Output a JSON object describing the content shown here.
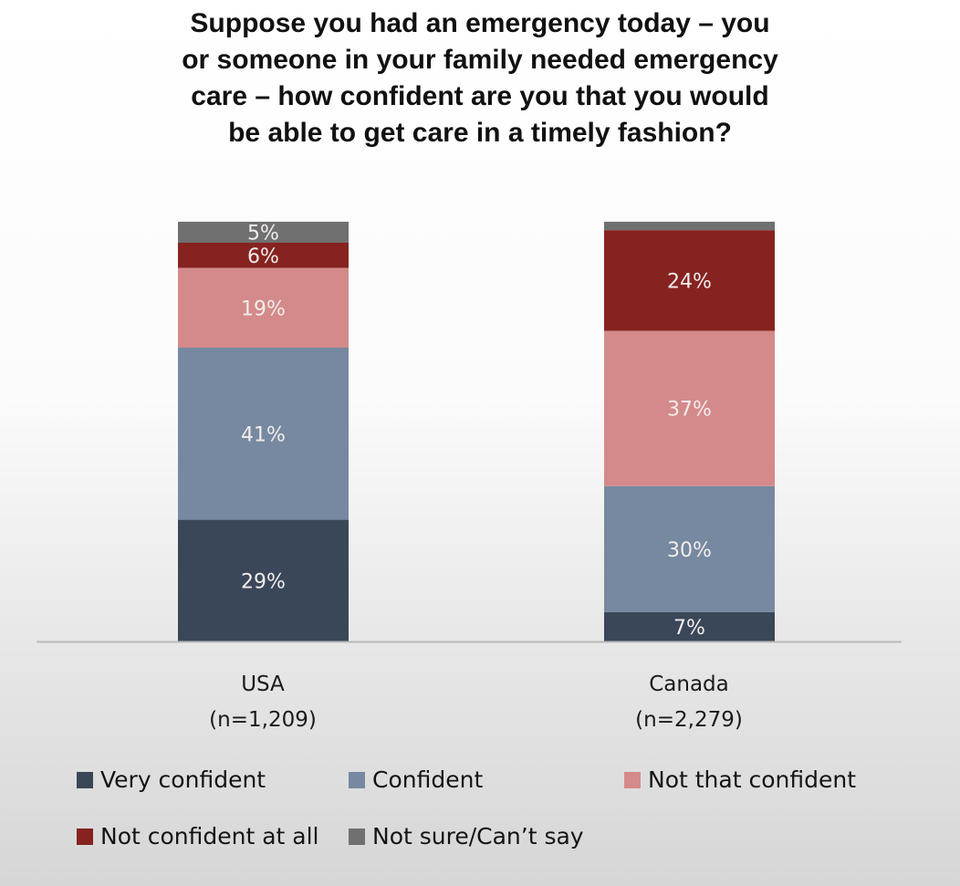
{
  "title_lines": [
    "Suppose you had an emergency today – you",
    "or someone in your family needed emergency",
    "care – how confident are you that you would",
    "be able to get care in a timely fashion?"
  ],
  "chart_data": {
    "type": "bar",
    "stacked": true,
    "title": "Suppose you had an emergency today – you or someone in your family needed emergency care – how confident are you that you would be able to get care in a timely fashion?",
    "categories": [
      "USA",
      "Canada"
    ],
    "category_sublabels": [
      "(n=1,209)",
      "(n=2,279)"
    ],
    "series": [
      {
        "name": "Very confident",
        "color": "#3a4759",
        "values": [
          29,
          7
        ],
        "labels": [
          "29%",
          "7%"
        ]
      },
      {
        "name": "Confident",
        "color": "#7689a0",
        "values": [
          41,
          30
        ],
        "labels": [
          "41%",
          "30%"
        ]
      },
      {
        "name": "Not that confident",
        "color": "#d48a8a",
        "values": [
          19,
          37
        ],
        "labels": [
          "19%",
          "37%"
        ]
      },
      {
        "name": "Not confident at all",
        "color": "#862320",
        "values": [
          6,
          24
        ],
        "labels": [
          "6%",
          "24%"
        ]
      },
      {
        "name": "Not sure/Can’t say",
        "color": "#707070",
        "values": [
          5,
          2
        ],
        "labels": [
          "5%",
          ""
        ]
      }
    ],
    "xlabel": "",
    "ylabel": "",
    "ylim": [
      0,
      100
    ],
    "grid": false,
    "legend_position": "bottom"
  }
}
